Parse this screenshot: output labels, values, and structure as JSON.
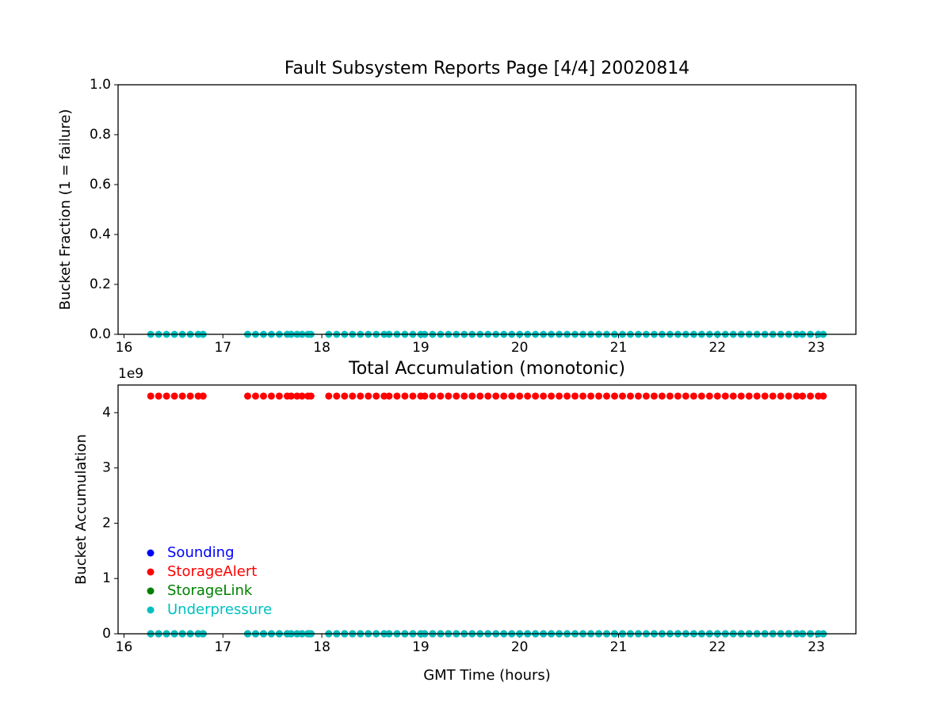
{
  "chart_data": [
    {
      "type": "scatter",
      "title": "Fault Subsystem Reports Page [4/4] 20020814",
      "y_label": "Bucket Fraction (1 = failure)",
      "x": [
        16.27,
        16.35,
        16.43,
        16.51,
        16.59,
        16.67,
        16.75,
        16.8,
        17.25,
        17.33,
        17.41,
        17.49,
        17.57,
        17.65,
        17.69,
        17.75,
        17.8,
        17.86,
        17.89,
        18.07,
        18.15,
        18.23,
        18.31,
        18.39,
        18.47,
        18.55,
        18.63,
        18.68,
        18.76,
        18.84,
        18.92,
        19.0,
        19.04,
        19.12,
        19.2,
        19.28,
        19.36,
        19.44,
        19.52,
        19.6,
        19.68,
        19.76,
        19.84,
        19.92,
        20.0,
        20.08,
        20.16,
        20.24,
        20.32,
        20.4,
        20.48,
        20.56,
        20.64,
        20.72,
        20.8,
        20.88,
        20.96,
        21.04,
        21.12,
        21.2,
        21.28,
        21.36,
        21.44,
        21.52,
        21.6,
        21.68,
        21.76,
        21.84,
        21.92,
        22.0,
        22.08,
        22.16,
        22.24,
        22.32,
        22.4,
        22.48,
        22.56,
        22.64,
        22.72,
        22.8,
        22.86,
        22.94,
        23.02,
        23.07
      ],
      "series": [
        {
          "name": "Underpressure",
          "color": "#00bfbf",
          "values": [
            0,
            0,
            0,
            0,
            0,
            0,
            0,
            0,
            0,
            0,
            0,
            0,
            0,
            0,
            0,
            0,
            0,
            0,
            0,
            0,
            0,
            0,
            0,
            0,
            0,
            0,
            0,
            0,
            0,
            0,
            0,
            0,
            0,
            0,
            0,
            0,
            0,
            0,
            0,
            0,
            0,
            0,
            0,
            0,
            0,
            0,
            0,
            0,
            0,
            0,
            0,
            0,
            0,
            0,
            0,
            0,
            0,
            0,
            0,
            0,
            0,
            0,
            0,
            0,
            0,
            0,
            0,
            0,
            0,
            0,
            0,
            0,
            0,
            0,
            0,
            0,
            0,
            0,
            0,
            0,
            0,
            0,
            0,
            0
          ]
        }
      ],
      "xlim": [
        15.94,
        23.4
      ],
      "xticks": [
        16,
        17,
        18,
        19,
        20,
        21,
        22,
        23
      ],
      "ylim": [
        0,
        1
      ],
      "yticks": [
        {
          "value": 0,
          "label": "0.0"
        },
        0.2,
        0.4,
        0.6,
        0.8,
        {
          "value": 1,
          "label": "1.0"
        }
      ]
    },
    {
      "type": "scatter",
      "title": "Total Accumulation (monotonic)",
      "x_label": "GMT Time (hours)",
      "y_label": "Bucket Accumulation",
      "y_offset_label": "1e9",
      "legend": "lower left",
      "x": [
        16.27,
        16.35,
        16.43,
        16.51,
        16.59,
        16.67,
        16.75,
        16.8,
        17.25,
        17.33,
        17.41,
        17.49,
        17.57,
        17.65,
        17.69,
        17.75,
        17.8,
        17.86,
        17.89,
        18.07,
        18.15,
        18.23,
        18.31,
        18.39,
        18.47,
        18.55,
        18.63,
        18.68,
        18.76,
        18.84,
        18.92,
        19.0,
        19.04,
        19.12,
        19.2,
        19.28,
        19.36,
        19.44,
        19.52,
        19.6,
        19.68,
        19.76,
        19.84,
        19.92,
        20.0,
        20.08,
        20.16,
        20.24,
        20.32,
        20.4,
        20.48,
        20.56,
        20.64,
        20.72,
        20.8,
        20.88,
        20.96,
        21.04,
        21.12,
        21.2,
        21.28,
        21.36,
        21.44,
        21.52,
        21.6,
        21.68,
        21.76,
        21.84,
        21.92,
        22.0,
        22.08,
        22.16,
        22.24,
        22.32,
        22.4,
        22.48,
        22.56,
        22.64,
        22.72,
        22.8,
        22.86,
        22.94,
        23.02,
        23.07
      ],
      "series": [
        {
          "name": "Sounding",
          "color": "#0000ff",
          "values": [
            0,
            0,
            0,
            0,
            0,
            0,
            0,
            0,
            0,
            0,
            0,
            0,
            0,
            0,
            0,
            0,
            0,
            0,
            0,
            0,
            0,
            0,
            0,
            0,
            0,
            0,
            0,
            0,
            0,
            0,
            0,
            0,
            0,
            0,
            0,
            0,
            0,
            0,
            0,
            0,
            0,
            0,
            0,
            0,
            0,
            0,
            0,
            0,
            0,
            0,
            0,
            0,
            0,
            0,
            0,
            0,
            0,
            0,
            0,
            0,
            0,
            0,
            0,
            0,
            0,
            0,
            0,
            0,
            0,
            0,
            0,
            0,
            0,
            0,
            0,
            0,
            0,
            0,
            0,
            0,
            0,
            0,
            0,
            0
          ]
        },
        {
          "name": "StorageAlert",
          "color": "#ff0000",
          "values": [
            4300000000,
            4300000000,
            4300000000,
            4300000000,
            4300000000,
            4300000000,
            4300000000,
            4300000000,
            4300000000,
            4300000000,
            4300000000,
            4300000000,
            4300000000,
            4300000000,
            4300000000,
            4300000000,
            4300000000,
            4300000000,
            4300000000,
            4300000000,
            4300000000,
            4300000000,
            4300000000,
            4300000000,
            4300000000,
            4300000000,
            4300000000,
            4300000000,
            4300000000,
            4300000000,
            4300000000,
            4300000000,
            4300000000,
            4300000000,
            4300000000,
            4300000000,
            4300000000,
            4300000000,
            4300000000,
            4300000000,
            4300000000,
            4300000000,
            4300000000,
            4300000000,
            4300000000,
            4300000000,
            4300000000,
            4300000000,
            4300000000,
            4300000000,
            4300000000,
            4300000000,
            4300000000,
            4300000000,
            4300000000,
            4300000000,
            4300000000,
            4300000000,
            4300000000,
            4300000000,
            4300000000,
            4300000000,
            4300000000,
            4300000000,
            4300000000,
            4300000000,
            4300000000,
            4300000000,
            4300000000,
            4300000000,
            4300000000,
            4300000000,
            4300000000,
            4300000000,
            4300000000,
            4300000000,
            4300000000,
            4300000000,
            4300000000,
            4300000000,
            4300000000,
            4300000000,
            4300000000,
            4300000000
          ]
        },
        {
          "name": "StorageLink",
          "color": "#008000",
          "values": [
            0,
            0,
            0,
            0,
            0,
            0,
            0,
            0,
            0,
            0,
            0,
            0,
            0,
            0,
            0,
            0,
            0,
            0,
            0,
            0,
            0,
            0,
            0,
            0,
            0,
            0,
            0,
            0,
            0,
            0,
            0,
            0,
            0,
            0,
            0,
            0,
            0,
            0,
            0,
            0,
            0,
            0,
            0,
            0,
            0,
            0,
            0,
            0,
            0,
            0,
            0,
            0,
            0,
            0,
            0,
            0,
            0,
            0,
            0,
            0,
            0,
            0,
            0,
            0,
            0,
            0,
            0,
            0,
            0,
            0,
            0,
            0,
            0,
            0,
            0,
            0,
            0,
            0,
            0,
            0,
            0,
            0,
            0,
            0
          ]
        },
        {
          "name": "Underpressure",
          "color": "#00bfbf",
          "values": [
            0,
            0,
            0,
            0,
            0,
            0,
            0,
            0,
            0,
            0,
            0,
            0,
            0,
            0,
            0,
            0,
            0,
            0,
            0,
            0,
            0,
            0,
            0,
            0,
            0,
            0,
            0,
            0,
            0,
            0,
            0,
            0,
            0,
            0,
            0,
            0,
            0,
            0,
            0,
            0,
            0,
            0,
            0,
            0,
            0,
            0,
            0,
            0,
            0,
            0,
            0,
            0,
            0,
            0,
            0,
            0,
            0,
            0,
            0,
            0,
            0,
            0,
            0,
            0,
            0,
            0,
            0,
            0,
            0,
            0,
            0,
            0,
            0,
            0,
            0,
            0,
            0,
            0,
            0,
            0,
            0,
            0,
            0,
            0
          ]
        }
      ],
      "xlim": [
        15.94,
        23.4
      ],
      "xticks": [
        16,
        17,
        18,
        19,
        20,
        21,
        22,
        23
      ],
      "ylim": [
        0,
        4500000000
      ],
      "yticks": [
        {
          "value": 0,
          "label": "0"
        },
        {
          "value": 1000000000,
          "label": "1"
        },
        {
          "value": 2000000000,
          "label": "2"
        },
        {
          "value": 3000000000,
          "label": "3"
        },
        {
          "value": 4000000000,
          "label": "4"
        }
      ]
    }
  ]
}
